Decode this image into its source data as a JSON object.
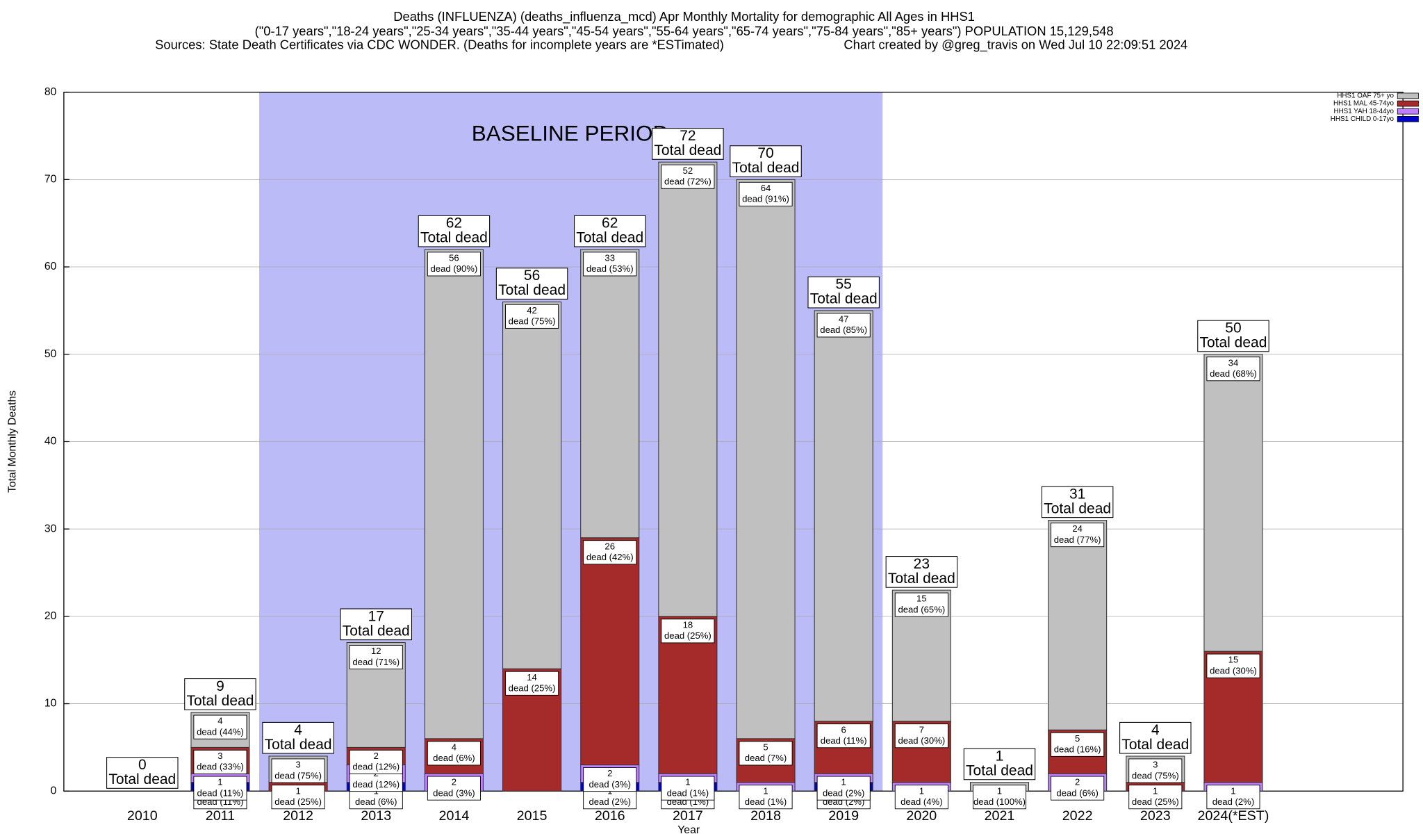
{
  "chart_data": {
    "type": "stacked_bar",
    "title": "Deaths (INFLUENZA) (deaths_influenza_mcd) Apr Monthly Mortality for demographic All Ages in HHS1",
    "subtitle": "(\"0-17 years\",\"18-24 years\",\"25-34 years\",\"35-44 years\",\"45-54 years\",\"55-64 years\",\"65-74 years\",\"75-84 years\",\"85+ years\") POPULATION 15,129,548",
    "sources": "Sources: State Death Certificates via CDC WONDER. (Deaths for incomplete years are *ESTimated)",
    "credit": "Chart created by @greg_travis on Wed Jul 10 22:09:51 2024",
    "x_label": "Year",
    "y_label": "Total Monthly Deaths",
    "categories": [
      "2010",
      "2011",
      "2012",
      "2013",
      "2014",
      "2015",
      "2016",
      "2017",
      "2018",
      "2019",
      "2020",
      "2021",
      "2022",
      "2023",
      "2024(*EST)"
    ],
    "series": [
      {
        "name": "HHS1 CHILD 0-17yo",
        "color": "#0000cc",
        "values": [
          0,
          1,
          0,
          1,
          0,
          0,
          1,
          1,
          0,
          1,
          0,
          0,
          0,
          0,
          0
        ],
        "share_labels": [
          null,
          "dead (11%)",
          null,
          "dead (6%)",
          null,
          null,
          "dead (2%)",
          "dead (1%)",
          null,
          "dead (2%)",
          null,
          null,
          null,
          null,
          null
        ]
      },
      {
        "name": "HHS1 YAH 18-44yo",
        "color": "#c080ff",
        "values": [
          0,
          1,
          0,
          2,
          2,
          0,
          2,
          1,
          1,
          1,
          1,
          0,
          2,
          0,
          1
        ],
        "share_labels": [
          null,
          "dead (11%)",
          null,
          "dead (12%)",
          "dead (3%)",
          null,
          "dead (3%)",
          "dead (1%)",
          "dead (1%)",
          "dead (2%)",
          "dead (4%)",
          null,
          "dead (6%)",
          null,
          "dead (2%)"
        ]
      },
      {
        "name": "HHS1 MAL 45-74yo",
        "color": "#a52a2a",
        "values": [
          0,
          3,
          1,
          2,
          4,
          14,
          26,
          18,
          5,
          6,
          7,
          0,
          5,
          1,
          15
        ],
        "share_labels": [
          null,
          "dead (33%)",
          "dead (25%)",
          "dead (12%)",
          "dead (6%)",
          "dead (25%)",
          "dead (42%)",
          "dead (25%)",
          "dead (7%)",
          "dead (11%)",
          "dead (30%)",
          null,
          "dead (16%)",
          "dead (25%)",
          "dead (30%)"
        ]
      },
      {
        "name": "HHS1 OAF 75+ yo",
        "color": "#c0c0c0",
        "values": [
          0,
          4,
          3,
          12,
          56,
          42,
          33,
          52,
          64,
          47,
          15,
          1,
          24,
          3,
          34
        ],
        "share_labels": [
          null,
          "dead (44%)",
          "dead (75%)",
          "dead (71%)",
          "dead (90%)",
          "dead (75%)",
          "dead (53%)",
          "dead (72%)",
          "dead (91%)",
          "dead (85%)",
          "dead (65%)",
          "dead (100%)",
          "dead (77%)",
          "dead (75%)",
          "dead (68%)"
        ]
      }
    ],
    "totals": [
      0,
      9,
      4,
      17,
      62,
      56,
      62,
      72,
      70,
      55,
      23,
      1,
      31,
      4,
      50
    ],
    "total_label": "Total dead",
    "baseline": {
      "label": "BASELINE PERIOD",
      "start": "2012",
      "end": "2019",
      "color": "#bbbbf8"
    },
    "ylim": [
      0,
      80
    ],
    "yticks": [
      0,
      10,
      20,
      30,
      40,
      50,
      60,
      70,
      80
    ],
    "grid": true,
    "legend": "upper right"
  }
}
